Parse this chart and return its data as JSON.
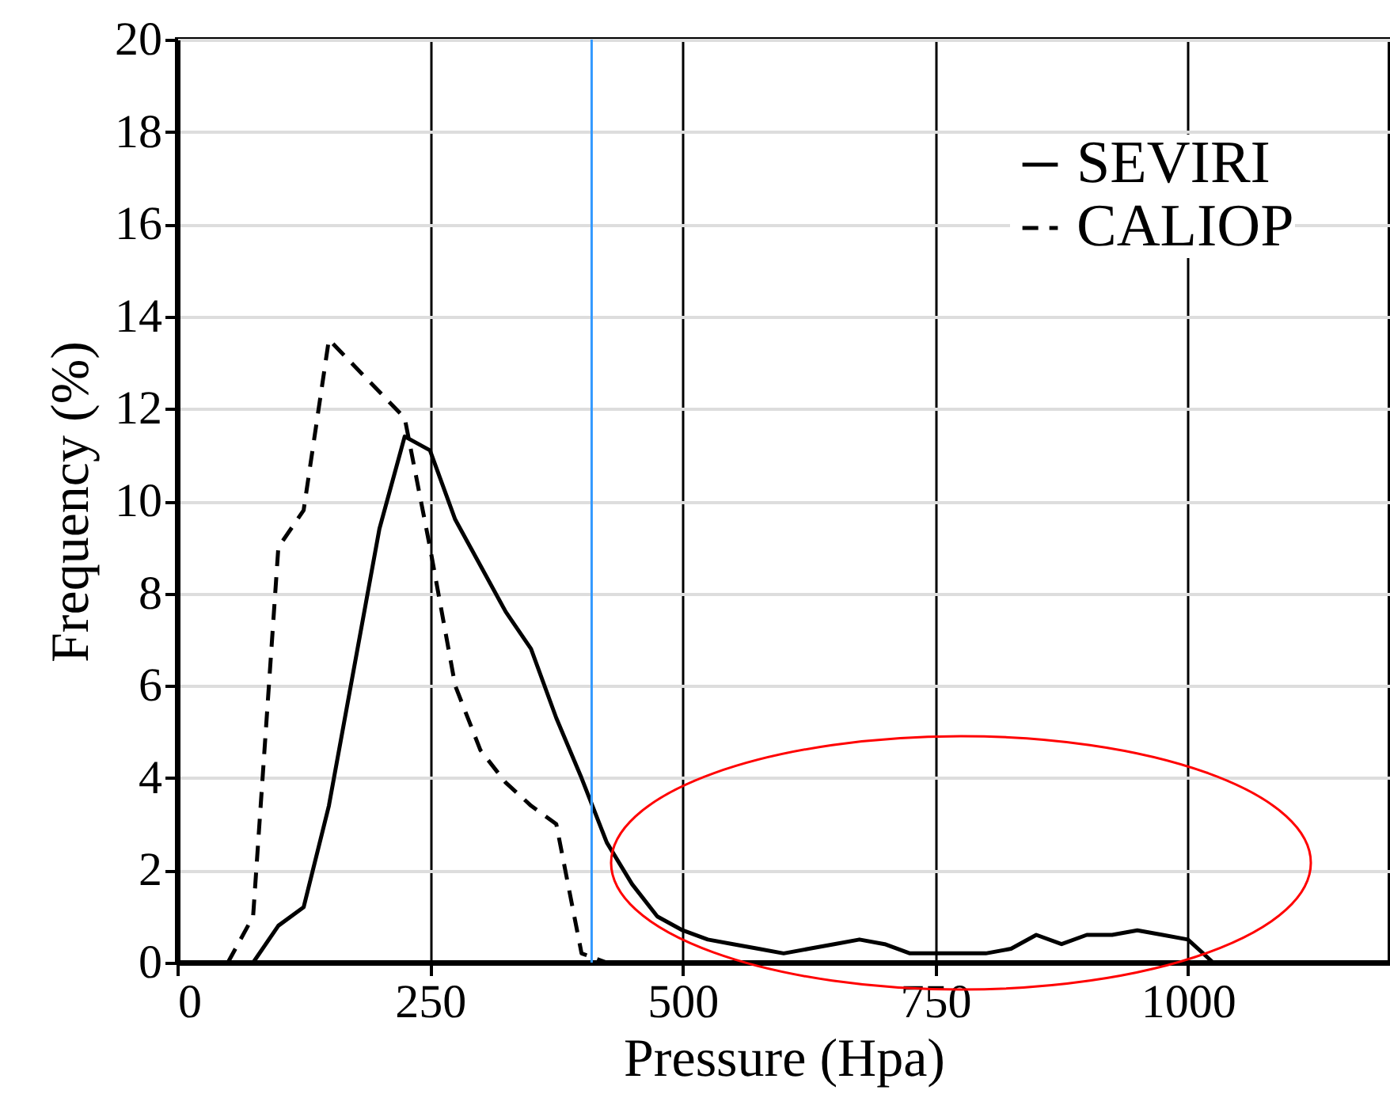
{
  "chart_data": {
    "type": "line",
    "xlabel": "Pressure (Hpa)",
    "ylabel": "Frequency (%)",
    "xlim": [
      0,
      1200
    ],
    "xticks": [
      0,
      250,
      500,
      750,
      1000
    ],
    "ylim": [
      0,
      20
    ],
    "yticks": [
      0,
      2,
      4,
      6,
      8,
      10,
      12,
      14,
      16,
      18,
      20
    ],
    "grid": true,
    "legend": "top right",
    "ref_lines": [
      {
        "axis": "x",
        "value": 410,
        "color": "#3399ff"
      }
    ],
    "series": [
      {
        "name": "SEVIRI",
        "color": "#000000",
        "line_style": "solid",
        "x": [
          75,
          100,
          125,
          150,
          200,
          225,
          250,
          275,
          325,
          350,
          375,
          400,
          425,
          450,
          475,
          500,
          525,
          550,
          575,
          600,
          625,
          650,
          675,
          700,
          725,
          750,
          775,
          800,
          825,
          850,
          875,
          900,
          925,
          950,
          975,
          1000,
          1025
        ],
        "values": [
          0,
          0.8,
          1.2,
          3.4,
          9.4,
          11.4,
          11.1,
          9.6,
          7.6,
          6.8,
          5.3,
          4.0,
          2.6,
          1.7,
          1.0,
          0.7,
          0.5,
          0.4,
          0.3,
          0.2,
          0.3,
          0.4,
          0.5,
          0.4,
          0.2,
          0.2,
          0.2,
          0.2,
          0.3,
          0.6,
          0.4,
          0.6,
          0.6,
          0.7,
          0.6,
          0.5,
          0
        ]
      },
      {
        "name": "CALIOP",
        "color": "#000000",
        "line_style": "dashed",
        "x": [
          50,
          75,
          100,
          125,
          150,
          225,
          250,
          275,
          300,
          325,
          350,
          375,
          400,
          425
        ],
        "values": [
          0,
          1.0,
          9.0,
          9.8,
          13.5,
          11.8,
          9.0,
          6.0,
          4.6,
          3.9,
          3.4,
          3.0,
          0.2,
          0
        ]
      }
    ]
  }
}
